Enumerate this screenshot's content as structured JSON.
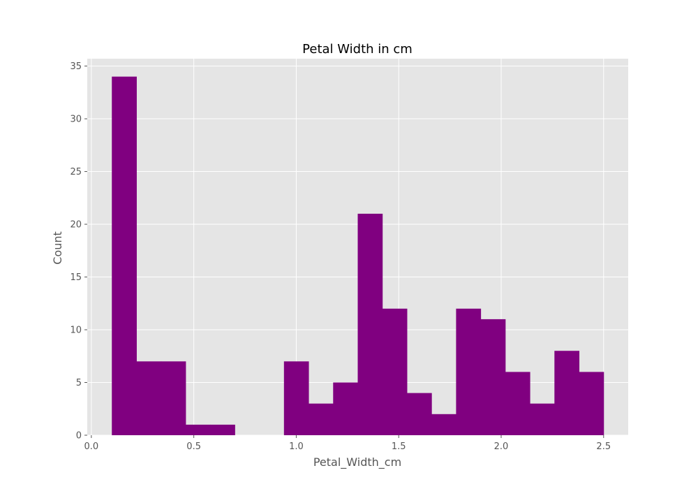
{
  "chart_data": {
    "type": "bar",
    "title": "Petal Width in cm",
    "xlabel": "Petal_Width_cm",
    "ylabel": "Count",
    "bin_edges": [
      0.1,
      0.22,
      0.34,
      0.46,
      0.58,
      0.7,
      0.82,
      0.94,
      1.06,
      1.18,
      1.3,
      1.42,
      1.54,
      1.66,
      1.78,
      1.9,
      2.02,
      2.14,
      2.26,
      2.38,
      2.5
    ],
    "values": [
      34,
      7,
      7,
      1,
      1,
      0,
      0,
      7,
      3,
      5,
      21,
      12,
      4,
      2,
      12,
      11,
      6,
      3,
      8,
      6
    ],
    "xlim": [
      -0.02,
      2.62
    ],
    "ylim": [
      0,
      35.7
    ],
    "x_ticks": [
      0.0,
      0.5,
      1.0,
      1.5,
      2.0,
      2.5
    ],
    "x_tick_labels": [
      "0.0",
      "0.5",
      "1.0",
      "1.5",
      "2.0",
      "2.5"
    ],
    "y_ticks": [
      0,
      5,
      10,
      15,
      20,
      25,
      30,
      35
    ],
    "y_tick_labels": [
      "0",
      "5",
      "10",
      "15",
      "20",
      "25",
      "30",
      "35"
    ],
    "grid": true,
    "bar_color": "#800080",
    "background_color": "#e5e5e5",
    "grid_color": "#ffffff"
  }
}
